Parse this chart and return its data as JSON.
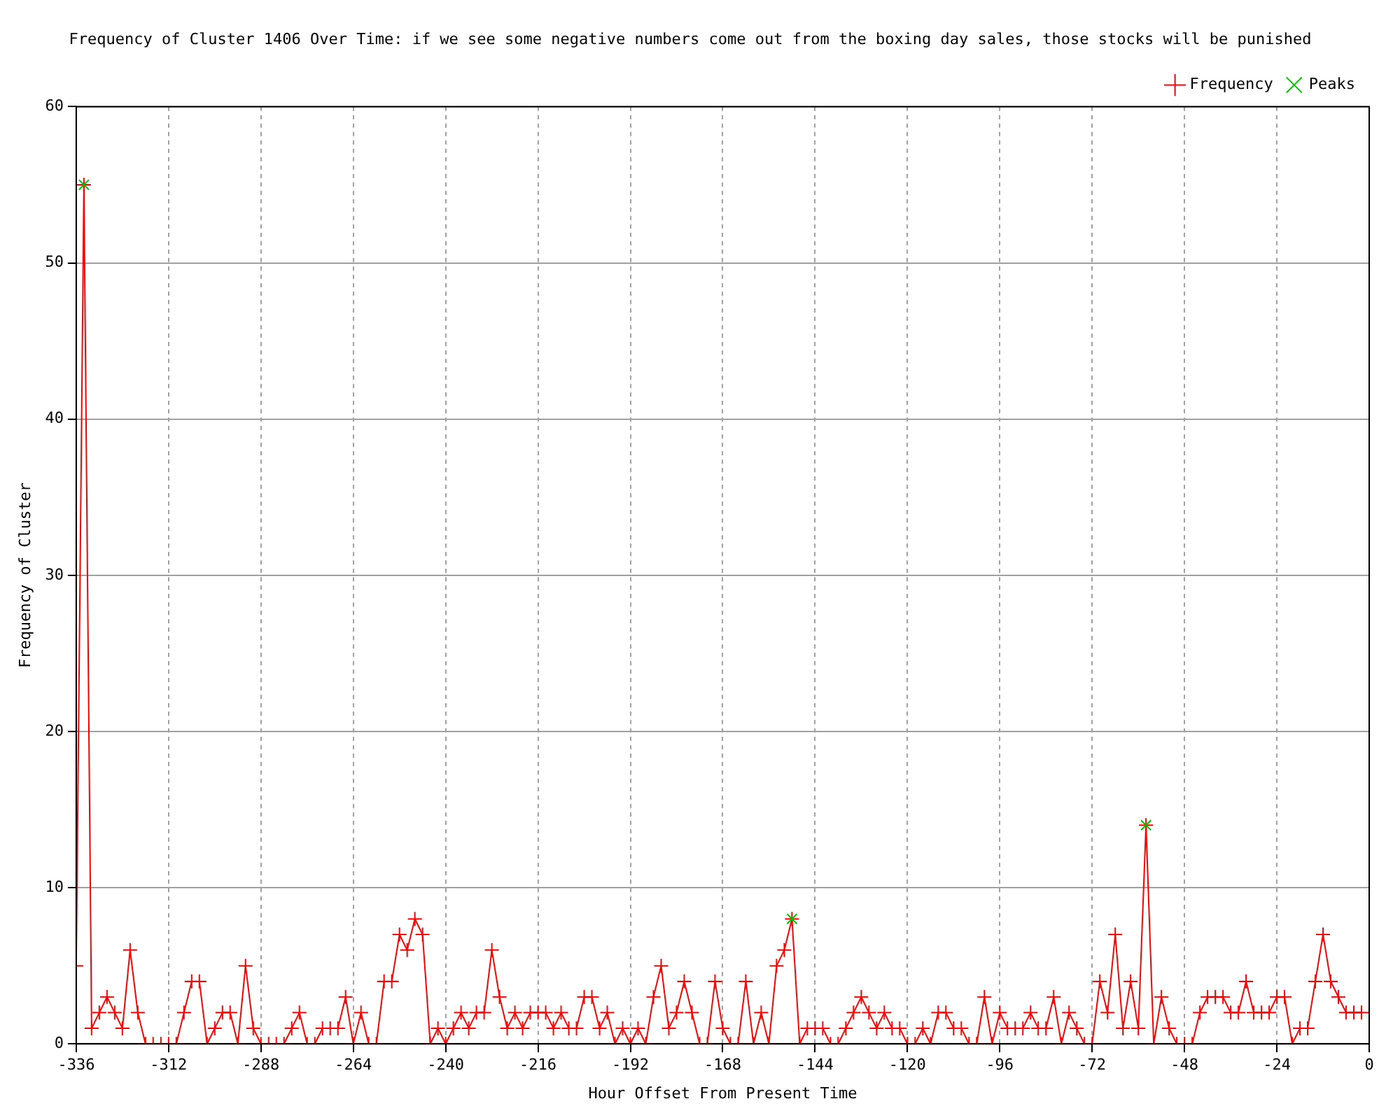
{
  "chart_data": {
    "type": "line",
    "title": "Frequency of Cluster 1406 Over Time: if we see some negative numbers come out from the boxing day sales, those stocks will be punished",
    "xlabel": "Hour Offset From Present Time",
    "ylabel": "Frequency of Cluster",
    "xlim": [
      -336,
      0
    ],
    "xticks": [
      -336,
      -312,
      -288,
      -264,
      -240,
      -216,
      -192,
      -168,
      -144,
      -120,
      -96,
      -72,
      -48,
      -24,
      0
    ],
    "ylim": [
      0,
      60
    ],
    "yticks": [
      0,
      10,
      20,
      30,
      40,
      50,
      60
    ],
    "grid": true,
    "legend": "top right",
    "marker": "cross",
    "line_style": "solid",
    "series": [
      {
        "name": "Frequency",
        "color": "#ff0000",
        "x": [
          -336,
          -334,
          -332,
          -330,
          -328,
          -326,
          -324,
          -322,
          -320,
          -318,
          -316,
          -314,
          -312,
          -310,
          -308,
          -306,
          -304,
          -302,
          -300,
          -298,
          -296,
          -294,
          -292,
          -290,
          -288,
          -286,
          -284,
          -282,
          -280,
          -278,
          -276,
          -274,
          -272,
          -270,
          -268,
          -266,
          -264,
          -262,
          -260,
          -258,
          -256,
          -254,
          -252,
          -250,
          -248,
          -246,
          -244,
          -242,
          -240,
          -238,
          -236,
          -234,
          -232,
          -230,
          -228,
          -226,
          -224,
          -222,
          -220,
          -218,
          -216,
          -214,
          -212,
          -210,
          -208,
          -206,
          -204,
          -202,
          -200,
          -198,
          -196,
          -194,
          -192,
          -190,
          -188,
          -186,
          -184,
          -182,
          -180,
          -178,
          -176,
          -174,
          -172,
          -170,
          -168,
          -166,
          -164,
          -162,
          -160,
          -158,
          -156,
          -154,
          -152,
          -150,
          -148,
          -146,
          -144,
          -142,
          -140,
          -138,
          -136,
          -134,
          -132,
          -130,
          -128,
          -126,
          -124,
          -122,
          -120,
          -118,
          -116,
          -114,
          -112,
          -110,
          -108,
          -106,
          -104,
          -102,
          -100,
          -98,
          -96,
          -94,
          -92,
          -90,
          -88,
          -86,
          -84,
          -82,
          -80,
          -78,
          -76,
          -74,
          -72,
          -70,
          -68,
          -66,
          -64,
          -62,
          -60,
          -58,
          -56,
          -54,
          -52,
          -50,
          -48,
          -46,
          -44,
          -42,
          -40,
          -38,
          -36,
          -34,
          -32,
          -30,
          -28,
          -26,
          -24,
          -22,
          -20,
          -18,
          -16,
          -14,
          -12,
          -10,
          -8,
          -6,
          -4,
          -2
        ],
        "values": [
          5,
          55,
          1,
          2,
          3,
          2,
          1,
          6,
          2,
          0,
          0,
          0,
          0,
          0,
          2,
          4,
          4,
          0,
          1,
          2,
          2,
          0,
          5,
          1,
          0,
          0,
          0,
          0,
          1,
          2,
          0,
          0,
          1,
          1,
          1,
          3,
          0,
          2,
          0,
          0,
          4,
          4,
          7,
          6,
          8,
          7,
          0,
          1,
          0,
          1,
          2,
          1,
          2,
          2,
          6,
          3,
          1,
          2,
          1,
          2,
          2,
          2,
          1,
          2,
          1,
          1,
          3,
          3,
          1,
          2,
          0,
          1,
          0,
          1,
          0,
          3,
          5,
          1,
          2,
          4,
          2,
          0,
          0,
          4,
          1,
          0,
          0,
          4,
          0,
          2,
          0,
          5,
          6,
          8,
          0,
          1,
          1,
          1,
          0,
          0,
          1,
          2,
          3,
          2,
          1,
          2,
          1,
          1,
          0,
          0,
          1,
          0,
          2,
          2,
          1,
          1,
          0,
          0,
          3,
          0,
          2,
          1,
          1,
          1,
          2,
          1,
          1,
          3,
          0,
          2,
          1,
          0,
          0,
          4,
          2,
          7,
          1,
          4,
          1,
          14,
          0,
          3,
          1,
          0,
          0,
          0,
          2,
          3,
          3,
          3,
          2,
          2,
          4,
          2,
          2,
          2,
          3,
          3,
          0,
          1,
          1,
          4,
          7,
          4,
          3,
          2,
          2,
          2
        ]
      },
      {
        "name": "Peaks",
        "type": "scatter",
        "color": "#00c000",
        "x": [
          -334,
          -150,
          -58
        ],
        "values": [
          55,
          8,
          14
        ]
      }
    ]
  }
}
